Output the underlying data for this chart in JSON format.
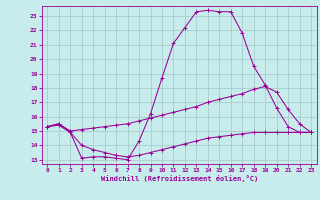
{
  "xlabel": "Windchill (Refroidissement éolien,°C)",
  "bg_color": "#c8ecec",
  "grid_color": "#a0c8c8",
  "line_color": "#990099",
  "x_ticks": [
    0,
    1,
    2,
    3,
    4,
    5,
    6,
    7,
    8,
    9,
    10,
    11,
    12,
    13,
    14,
    15,
    16,
    17,
    18,
    19,
    20,
    21,
    22,
    23
  ],
  "y_ticks": [
    13,
    14,
    15,
    16,
    17,
    18,
    19,
    20,
    21,
    22,
    23
  ],
  "ylim": [
    12.7,
    23.7
  ],
  "xlim": [
    -0.5,
    23.5
  ],
  "line1_x": [
    0,
    1,
    2,
    3,
    4,
    5,
    6,
    7,
    8,
    9,
    10,
    11,
    12,
    13,
    14,
    15,
    16,
    17,
    18,
    19,
    20,
    21,
    22,
    23
  ],
  "line1_y": [
    15.3,
    15.5,
    14.9,
    13.1,
    13.2,
    13.2,
    13.1,
    13.0,
    14.3,
    16.2,
    18.7,
    21.1,
    22.2,
    23.3,
    23.4,
    23.3,
    23.3,
    21.8,
    19.5,
    18.2,
    16.6,
    15.3,
    14.9,
    14.9
  ],
  "line2_x": [
    0,
    1,
    2,
    3,
    4,
    5,
    6,
    7,
    8,
    9,
    10,
    11,
    12,
    13,
    14,
    15,
    16,
    17,
    18,
    19,
    20,
    21,
    22,
    23
  ],
  "line2_y": [
    15.3,
    15.5,
    15.0,
    15.1,
    15.2,
    15.3,
    15.4,
    15.5,
    15.7,
    15.9,
    16.1,
    16.3,
    16.5,
    16.7,
    17.0,
    17.2,
    17.4,
    17.6,
    17.9,
    18.1,
    17.7,
    16.5,
    15.5,
    14.9
  ],
  "line3_x": [
    0,
    1,
    2,
    3,
    4,
    5,
    6,
    7,
    8,
    9,
    10,
    11,
    12,
    13,
    14,
    15,
    16,
    17,
    18,
    19,
    20,
    21,
    22,
    23
  ],
  "line3_y": [
    15.3,
    15.4,
    14.9,
    14.0,
    13.7,
    13.5,
    13.3,
    13.2,
    13.3,
    13.5,
    13.7,
    13.9,
    14.1,
    14.3,
    14.5,
    14.6,
    14.7,
    14.8,
    14.9,
    14.9,
    14.9,
    14.9,
    14.9,
    14.9
  ]
}
